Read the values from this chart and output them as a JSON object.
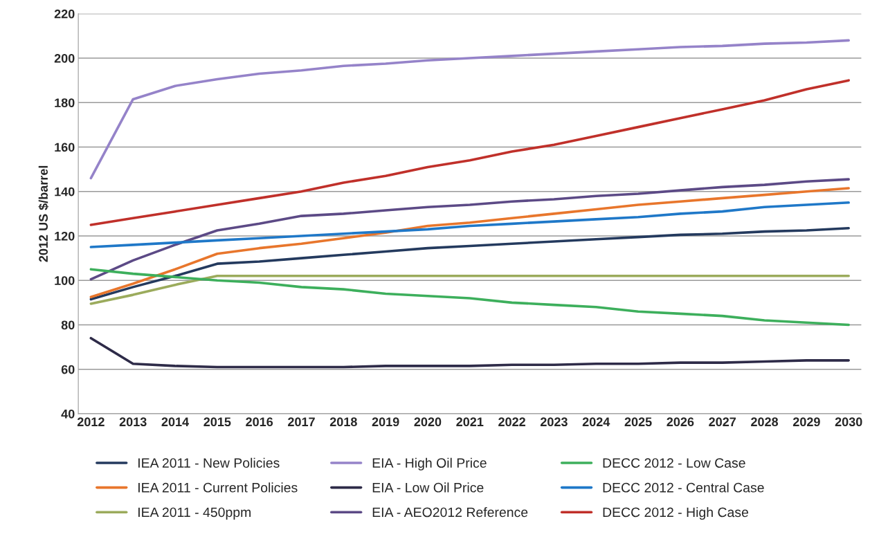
{
  "chart_data": {
    "type": "line",
    "ylabel": "2012 US $/barrel",
    "categories": [
      "2012",
      "2013",
      "2014",
      "2015",
      "2016",
      "2017",
      "2018",
      "2019",
      "2020",
      "2021",
      "2022",
      "2023",
      "2024",
      "2025",
      "2026",
      "2027",
      "2028",
      "2029",
      "2030"
    ],
    "ylim": [
      40,
      220
    ],
    "yticks": [
      40,
      60,
      80,
      100,
      120,
      140,
      160,
      180,
      200,
      220
    ],
    "grid": "y",
    "legend": "bottom",
    "marker": "none",
    "line_style": "solid",
    "series": [
      {
        "name": "IEA 2011 - New Policies",
        "color": "#243a5e",
        "values": [
          91.5,
          97,
          102,
          107.5,
          108.5,
          110,
          111.5,
          113,
          114.5,
          115.5,
          116.5,
          117.5,
          118.5,
          119.5,
          120.5,
          121,
          122,
          122.5,
          123.5
        ]
      },
      {
        "name": "IEA 2011 - Current Policies",
        "color": "#e8762c",
        "values": [
          92.5,
          98.5,
          105,
          112,
          114.5,
          116.5,
          119,
          121.5,
          124.5,
          126,
          128,
          130,
          132,
          134,
          135.5,
          137,
          138.5,
          140,
          141.5
        ]
      },
      {
        "name": "IEA 2011 - 450ppm",
        "color": "#9bab5c",
        "values": [
          89.5,
          93.5,
          98,
          102,
          102,
          102,
          102,
          102,
          102,
          102,
          102,
          102,
          102,
          102,
          102,
          102,
          102,
          102,
          102
        ]
      },
      {
        "name": "EIA - High Oil Price",
        "color": "#9583c9",
        "values": [
          146,
          181.5,
          187.5,
          190.5,
          193,
          194.5,
          196.5,
          197.5,
          199,
          200,
          201,
          202,
          203,
          204,
          205,
          205.5,
          206.5,
          207,
          208
        ]
      },
      {
        "name": "EIA - Low Oil Price",
        "color": "#2e2b48",
        "values": [
          74,
          62.5,
          61.5,
          61,
          61,
          61,
          61,
          61.5,
          61.5,
          61.5,
          62,
          62,
          62.5,
          62.5,
          63,
          63,
          63.5,
          64,
          64
        ]
      },
      {
        "name": "EIA - AEO2012 Reference",
        "color": "#5c4a86",
        "values": [
          100.5,
          109,
          116,
          122.5,
          125.5,
          129,
          130,
          131.5,
          133,
          134,
          135.5,
          136.5,
          138,
          139,
          140.5,
          142,
          143,
          144.5,
          145.5
        ]
      },
      {
        "name": "DECC 2012 - Low Case",
        "color": "#3daf5c",
        "values": [
          105,
          103,
          101.5,
          100,
          99,
          97,
          96,
          94,
          93,
          92,
          90,
          89,
          88,
          86,
          85,
          84,
          82,
          81,
          80
        ]
      },
      {
        "name": "DECC 2012 - Central Case",
        "color": "#1f78c8",
        "values": [
          115,
          116,
          117,
          118,
          119,
          120,
          121,
          122,
          123,
          124.5,
          125.5,
          126.5,
          127.5,
          128.5,
          130,
          131,
          133,
          134,
          135
        ]
      },
      {
        "name": "DECC 2012 - High Case",
        "color": "#c0302a",
        "values": [
          125,
          128,
          131,
          134,
          137,
          140,
          144,
          147,
          151,
          154,
          158,
          161,
          165,
          169,
          173,
          177,
          181,
          186,
          190
        ]
      }
    ]
  }
}
